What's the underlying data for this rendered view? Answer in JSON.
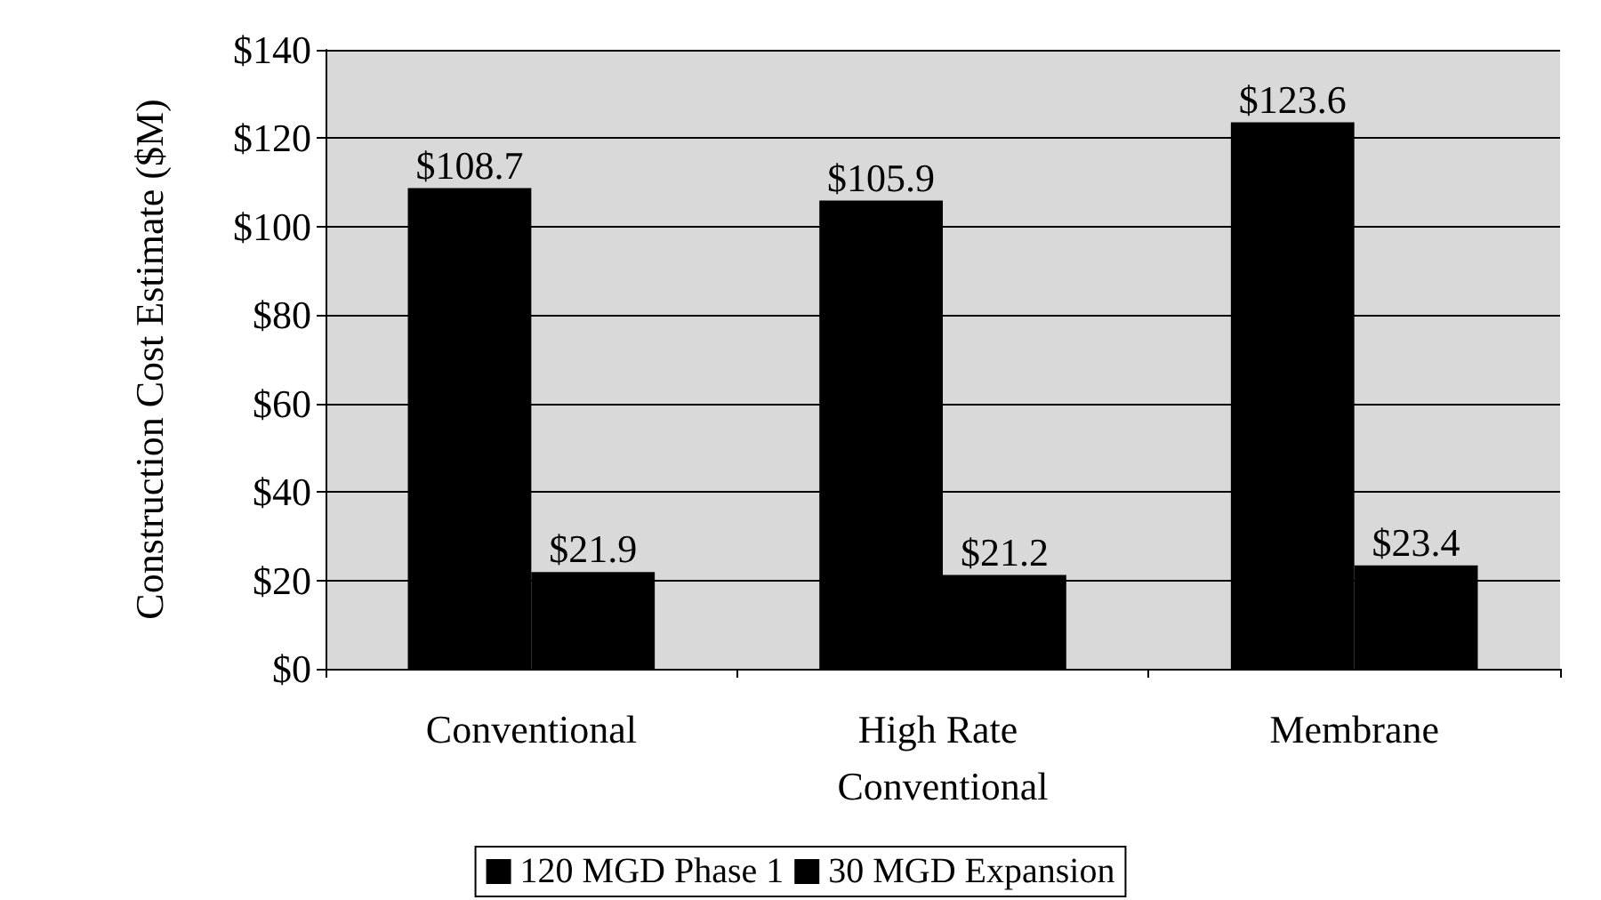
{
  "chart_data": {
    "type": "bar",
    "ylabel": "Construction Cost Estimate ($M)",
    "categories": [
      "Conventional",
      "High Rate Conventional",
      "Membrane"
    ],
    "series": [
      {
        "name": "120 MGD Phase 1",
        "color": "#000000",
        "values": [
          108.7,
          105.9,
          123.6
        ],
        "value_labels": [
          "$108.7",
          "$105.9",
          "$123.6"
        ]
      },
      {
        "name": "30 MGD Expansion",
        "color": "#000000",
        "values": [
          21.9,
          21.2,
          23.4
        ],
        "value_labels": [
          "$21.9",
          "$21.2",
          "$23.4"
        ]
      }
    ],
    "ylim": [
      0,
      140
    ],
    "yticks": [
      {
        "value": 0,
        "label": "$0"
      },
      {
        "value": 20,
        "label": "$20"
      },
      {
        "value": 40,
        "label": "$40"
      },
      {
        "value": 60,
        "label": "$60"
      },
      {
        "value": 80,
        "label": "$80"
      },
      {
        "value": 100,
        "label": "$100"
      },
      {
        "value": 120,
        "label": "$120"
      },
      {
        "value": 140,
        "label": "$140"
      }
    ],
    "grid": "y",
    "legend": "bottom"
  }
}
